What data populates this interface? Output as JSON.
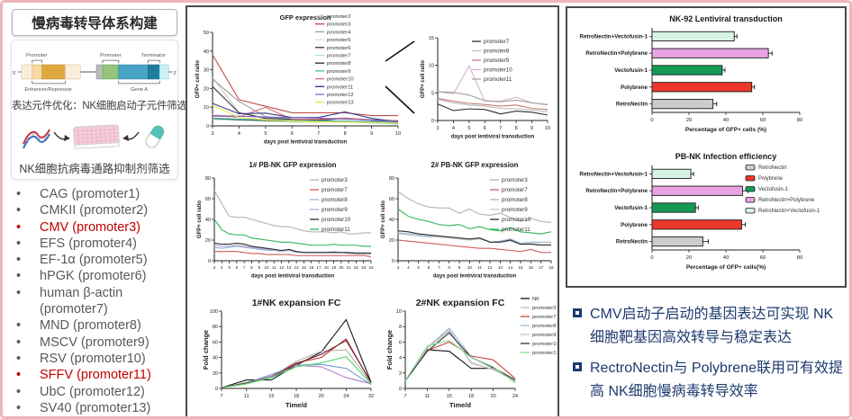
{
  "left_panel": {
    "title": "慢病毒转导体系构建",
    "diagram": {
      "five_prime": "5'",
      "three_prime": "3'",
      "promoter_label_1": "Promoter",
      "promoter_label_2": "Promoter",
      "terminator_label": "Terminator",
      "enhancer_label": "Enhancer/Repressor",
      "gene_label": "Gene A"
    },
    "caption_1": "表达元件优化：NK细胞启动子元件筛选",
    "caption_2": "NK细胞抗病毒通路抑制剂筛选",
    "promoters": [
      {
        "name": "CAG",
        "tag": "(promoter1)",
        "highlight": false
      },
      {
        "name": "CMKII",
        "tag": "(promoter2)",
        "highlight": false
      },
      {
        "name": "CMV",
        "tag": "(promoter3)",
        "highlight": true
      },
      {
        "name": "EFS",
        "tag": "(promoter4)",
        "highlight": false
      },
      {
        "name": "EF-1α",
        "tag": "(promoter5)",
        "highlight": false
      },
      {
        "name": "hPGK",
        "tag": "(promoter6)",
        "highlight": false
      },
      {
        "name": "human β-actin",
        "tag": "(promoter7)",
        "highlight": false
      },
      {
        "name": "MND",
        "tag": "(promoter8)",
        "highlight": false
      },
      {
        "name": "MSCV",
        "tag": "(promoter9)",
        "highlight": false
      },
      {
        "name": "RSV",
        "tag": "(promoter10)",
        "highlight": false
      },
      {
        "name": "SFFV",
        "tag": "(promoter11)",
        "highlight": true
      },
      {
        "name": "UbC",
        "tag": "(promoter12)",
        "highlight": false
      },
      {
        "name": "SV40",
        "tag": "(promoter13)",
        "highlight": false
      }
    ]
  },
  "right_panel": {
    "bullets": [
      "CMV启动子启动的基因表达可实现 NK细胞靶基因高效转导与稳定表达",
      "RectroNectin与 Polybrene联用可有效提高 NK细胞慢病毒转导效率"
    ]
  },
  "chart_data": [
    {
      "id": "gfp-expression",
      "type": "line",
      "title": "GFP expression",
      "xlabel": "days post lentiviral transduction",
      "ylabel": "GFP+ cell ratio",
      "x": [
        3,
        4,
        5,
        6,
        7,
        8,
        9,
        10
      ],
      "ylim": [
        0,
        50
      ],
      "yticks": [
        0,
        10,
        20,
        30,
        40,
        50
      ],
      "series": [
        {
          "name": "promoter2",
          "color": "#c8c8c8",
          "values": [
            26,
            7,
            4.5,
            3.5,
            3,
            2.5,
            2,
            1.5
          ]
        },
        {
          "name": "promoter3",
          "color": "#c0504d",
          "values": [
            38,
            14,
            10.5,
            7,
            7,
            7,
            5.5,
            5.5
          ]
        },
        {
          "name": "promoter4",
          "color": "#9e9e9e",
          "values": [
            25,
            13,
            5,
            3.5,
            3,
            2.5,
            2,
            2
          ]
        },
        {
          "name": "promoter5",
          "color": "#dcdcdc",
          "values": [
            6,
            4.5,
            3.5,
            3,
            2.5,
            2.5,
            2,
            1.5
          ]
        },
        {
          "name": "promoter6",
          "color": "#3d3d3d",
          "values": [
            21,
            7,
            4,
            3.5,
            3,
            4,
            3,
            1.5
          ]
        },
        {
          "name": "promoter7",
          "color": "#a8e6c3",
          "values": [
            3.5,
            3,
            2.5,
            2,
            2,
            2,
            1.5,
            1
          ]
        },
        {
          "name": "promoter8",
          "color": "#2f2f2f",
          "values": [
            4,
            3.3,
            2.9,
            2.6,
            2.3,
            2.2,
            2,
            1.6
          ]
        },
        {
          "name": "promoter9",
          "color": "#45b5aa",
          "values": [
            4.2,
            3.6,
            3.2,
            3,
            2.7,
            2.5,
            2.3,
            2
          ]
        },
        {
          "name": "promoter10",
          "color": "#d66a6a",
          "values": [
            5.2,
            4.8,
            9.9,
            3.5,
            3.5,
            4.2,
            3.3,
            2.8
          ]
        },
        {
          "name": "promoter11",
          "color": "#2e3a8c",
          "values": [
            12,
            6.5,
            6.8,
            4.5,
            4.5,
            7.5,
            4,
            2.2
          ]
        },
        {
          "name": "promoter12",
          "color": "#7b68c9",
          "values": [
            5.5,
            5.2,
            4.7,
            4.4,
            4.2,
            3.6,
            3.1,
            2.4
          ]
        },
        {
          "name": "promoter13",
          "color": "#f3e34c",
          "values": [
            11,
            4.5,
            3.2,
            2.6,
            2.2,
            2,
            1.8,
            1.5
          ]
        }
      ]
    },
    {
      "id": "gfp-inset",
      "type": "line",
      "title": "",
      "xlabel": "days post lentiviral transduction",
      "ylabel": "GFP+ cell ratio",
      "x": [
        3,
        4,
        5,
        6,
        7,
        8,
        9,
        10
      ],
      "ylim": [
        0,
        15
      ],
      "yticks": [
        0,
        5,
        10,
        15
      ],
      "series": [
        {
          "name": "promoter7",
          "color": "#2f2f2f",
          "values": [
            3,
            1.8,
            2.1,
            2,
            1.2,
            1.7,
            1.5,
            1
          ]
        },
        {
          "name": "promoter8",
          "color": "#b9b9b9",
          "values": [
            3.8,
            3.2,
            2.8,
            2.6,
            2.2,
            2.1,
            1.9,
            1.6
          ]
        },
        {
          "name": "promoter9",
          "color": "#c27a76",
          "values": [
            4,
            3.5,
            3.1,
            2.9,
            2.6,
            2.8,
            2.2,
            2
          ]
        },
        {
          "name": "promoter10",
          "color": "#d9b3cf",
          "values": [
            5.2,
            4.8,
            9.9,
            3.5,
            3.5,
            4.2,
            3.2,
            2.8
          ]
        },
        {
          "name": "promoter11",
          "color": "#a0a0a0",
          "values": [
            5.2,
            5.1,
            4.6,
            3.6,
            3.4,
            3.7,
            3.2,
            2.9
          ]
        }
      ]
    },
    {
      "id": "pbnk1-gfp",
      "type": "line",
      "title": "1# PB-NK GFP expression",
      "xlabel": "days post lentiviral transduction",
      "ylabel": "GFP+ cell ratio",
      "x": [
        3,
        4,
        5,
        6,
        7,
        8,
        9,
        10,
        11,
        12,
        13,
        14,
        15,
        16,
        17,
        18,
        19,
        20,
        21,
        22,
        23,
        24
      ],
      "ylim": [
        0,
        80
      ],
      "yticks": [
        0,
        20,
        40,
        60,
        80
      ],
      "series": [
        {
          "name": "promoter3",
          "color": "#b3b3b3",
          "values": [
            68,
            55,
            43,
            42,
            42,
            40,
            38,
            36,
            34,
            33,
            33,
            31,
            29,
            28,
            28,
            28,
            27,
            28,
            26,
            26,
            27,
            27
          ]
        },
        {
          "name": "promoter7",
          "color": "#cf5b5b",
          "values": [
            9,
            9,
            9,
            9,
            8,
            7,
            7,
            6,
            6,
            6,
            6,
            5,
            5,
            5,
            5,
            5,
            5,
            5,
            5,
            5,
            5,
            4
          ]
        },
        {
          "name": "promoter8",
          "color": "#94b8d7",
          "values": [
            13,
            12,
            13,
            14,
            13,
            12,
            11,
            10,
            10,
            9,
            10,
            8,
            8,
            8,
            8,
            8,
            9,
            8,
            8,
            8,
            8,
            7
          ]
        },
        {
          "name": "promoter9",
          "color": "#b3a6d4",
          "values": [
            15,
            14,
            14,
            15,
            14,
            13,
            12,
            11,
            10,
            10,
            10,
            9,
            8,
            8,
            8,
            8,
            8,
            8,
            7,
            7,
            8,
            8
          ]
        },
        {
          "name": "promoter10",
          "color": "#2d2d2d",
          "values": [
            17,
            16,
            16,
            17,
            16,
            14,
            13,
            12,
            11,
            10,
            11,
            9,
            8,
            8,
            8,
            8,
            8,
            8,
            8,
            7,
            7,
            7
          ]
        },
        {
          "name": "promoter11",
          "color": "#2fb457",
          "values": [
            40,
            30,
            26,
            25,
            25,
            22,
            21,
            20,
            19,
            18,
            18,
            17,
            16,
            15,
            15,
            15,
            16,
            15,
            15,
            15,
            14,
            14
          ]
        }
      ]
    },
    {
      "id": "pbnk2-gfp",
      "type": "line",
      "title": "2# PB-NK GFP expression",
      "xlabel": "days post lentiviral transduction",
      "ylabel": "GFP+ cell ratio",
      "x": [
        3,
        4,
        5,
        6,
        7,
        8,
        9,
        10,
        11,
        12,
        13,
        14,
        15,
        16,
        17,
        18
      ],
      "ylim": [
        0,
        80
      ],
      "yticks": [
        0,
        20,
        40,
        60,
        80
      ],
      "series": [
        {
          "name": "promoter3",
          "color": "#b3b3b3",
          "values": [
            67,
            60,
            55,
            52,
            51,
            51,
            46,
            50,
            45,
            44,
            46,
            42,
            38,
            41,
            38,
            37
          ]
        },
        {
          "name": "promoter7",
          "color": "#cf5b5b",
          "values": [
            20,
            19,
            18,
            17,
            16,
            15,
            14,
            13,
            12,
            12,
            11,
            10,
            9,
            11,
            8,
            8
          ]
        },
        {
          "name": "promoter8",
          "color": "#94b8d7",
          "values": [
            27,
            26,
            25,
            24,
            23,
            22,
            21,
            20,
            22,
            18,
            19,
            21,
            17,
            18,
            18,
            18
          ]
        },
        {
          "name": "promoter9",
          "color": "#c6c6c6",
          "values": [
            26,
            25,
            24,
            23,
            23,
            22,
            21,
            20,
            21,
            18,
            18,
            19,
            16,
            17,
            16,
            16
          ]
        },
        {
          "name": "promoter10",
          "color": "#2d2d2d",
          "values": [
            29,
            28,
            26,
            25,
            24,
            23,
            22,
            21,
            22,
            18,
            18,
            20,
            16,
            16,
            15,
            15
          ]
        },
        {
          "name": "promoter11",
          "color": "#2fb457",
          "values": [
            50,
            43,
            40,
            38,
            35,
            34,
            35,
            31,
            33,
            30,
            29,
            32,
            28,
            27,
            26,
            28
          ]
        }
      ]
    },
    {
      "id": "nk1-expansion",
      "type": "line",
      "title": "1#NK expansion FC",
      "xlabel": "Time/d",
      "ylabel": "Fold change",
      "x": [
        7,
        11,
        15,
        18,
        20,
        24,
        32
      ],
      "ylim": [
        0,
        100
      ],
      "yticks": [
        0,
        20,
        40,
        60,
        80,
        100
      ],
      "series": [
        {
          "name": "NK",
          "color": "#151515",
          "values": [
            1,
            11,
            11,
            30,
            47,
            89,
            8
          ]
        },
        {
          "name": "promoter3",
          "color": "#b3b3b3",
          "values": [
            1,
            8,
            15,
            35,
            48,
            50,
            7
          ]
        },
        {
          "name": "promoter7",
          "color": "#c23b3b",
          "values": [
            1,
            7,
            16,
            33,
            40,
            64,
            7
          ]
        },
        {
          "name": "promoter8",
          "color": "#6f9fd8",
          "values": [
            1,
            7,
            18,
            30,
            31,
            26,
            5
          ]
        },
        {
          "name": "promoter9",
          "color": "#b07fc7",
          "values": [
            1,
            6,
            16,
            30,
            28,
            14,
            6
          ]
        },
        {
          "name": "promoter10",
          "color": "#6e2431",
          "values": [
            1,
            7,
            14,
            32,
            44,
            62,
            8
          ]
        },
        {
          "name": "promoter11",
          "color": "#4cd964",
          "values": [
            1,
            6,
            14,
            28,
            33,
            41,
            6
          ]
        }
      ]
    },
    {
      "id": "nk2-expansion",
      "type": "line",
      "title": "2#NK expansion FC",
      "xlabel": "Time/d",
      "ylabel": "Fold change",
      "x": [
        7,
        11,
        15,
        18,
        20,
        24
      ],
      "ylim": [
        0,
        10
      ],
      "yticks": [
        0,
        2,
        4,
        6,
        8,
        10
      ],
      "series": [
        {
          "name": "NK",
          "color": "#151515",
          "values": [
            1,
            5,
            4.8,
            2.6,
            2.6,
            0.9
          ]
        },
        {
          "name": "promoter3",
          "color": "#c0c0c0",
          "values": [
            1,
            5.2,
            7.4,
            3.4,
            2.4,
            1.0
          ]
        },
        {
          "name": "promoter7",
          "color": "#cc4444",
          "values": [
            1,
            4.9,
            6.0,
            4.2,
            3.7,
            1.3
          ]
        },
        {
          "name": "promoter8",
          "color": "#9bb8d4",
          "values": [
            1,
            5.3,
            7.8,
            4.1,
            2.6,
            0.9
          ]
        },
        {
          "name": "promoter9",
          "color": "#c4c4c4",
          "values": [
            1,
            5.2,
            7.6,
            3.2,
            2.5,
            1.0
          ]
        },
        {
          "name": "promoter10",
          "color": "#333333",
          "values": [
            1,
            4.8,
            7.2,
            4.0,
            2.7,
            1.1
          ]
        },
        {
          "name": "promoter11",
          "color": "#7fe08c",
          "values": [
            1,
            5.5,
            6.2,
            4.0,
            2.8,
            0.7
          ]
        }
      ]
    },
    {
      "id": "nk92-transduction",
      "type": "barh",
      "title": "NK-92 Lentiviral transduction",
      "xlabel": "Percentage of GFP+ cells (%)",
      "xlim": [
        0,
        80
      ],
      "xticks": [
        0,
        20,
        40,
        60,
        80
      ],
      "categories": [
        "RetroNectin+Vectofusin-1",
        "RetroNectin+Polybrene",
        "Vectofusin-1",
        "Polybrene",
        "RetroNectin"
      ],
      "values": [
        44.5,
        63,
        38,
        54,
        33
      ],
      "errors": [
        1.5,
        2,
        1.5,
        1.5,
        2
      ],
      "colors": [
        "#d7f3e6",
        "#e7a3e3",
        "#159a56",
        "#ee372b",
        "#cccccc"
      ]
    },
    {
      "id": "pbnk-infection",
      "type": "barh",
      "title": "PB-NK Infection efficiency",
      "xlabel": "Percentage of GFP+ cells(%)",
      "xlim": [
        0,
        80
      ],
      "xticks": [
        0,
        20,
        40,
        60,
        80
      ],
      "categories": [
        "RetroNectin+Vectofusin-1",
        "RetroNectin+Polybrene",
        "Vectofusin-1",
        "Polybrene",
        "RetroNectin"
      ],
      "values": [
        21,
        49,
        23.5,
        48.5,
        27.5
      ],
      "errors": [
        1.5,
        3,
        1.5,
        2,
        3
      ],
      "colors": [
        "#d7f3e6",
        "#e7a3e3",
        "#159a56",
        "#ee372b",
        "#cccccc"
      ],
      "legend": [
        {
          "label": "RetroNectin",
          "color": "#cccccc"
        },
        {
          "label": "Polybrene",
          "color": "#ee372b"
        },
        {
          "label": "Vectofusin-1",
          "color": "#159a56"
        },
        {
          "label": "RetroNectin+Polybrene",
          "color": "#e7a3e3"
        },
        {
          "label": "RetroNectin+Vectofusin-1",
          "color": "#d7f3e6"
        }
      ]
    }
  ]
}
